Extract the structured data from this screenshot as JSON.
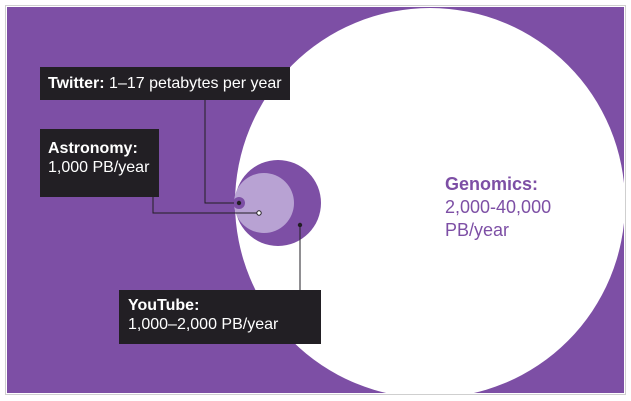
{
  "colors": {
    "background": "#7d4fa5",
    "genomics_circle": "#ffffff",
    "youtube_circle": "#7d4fa5",
    "astronomy_circle": "#b8a2d3",
    "twitter_circle": "#7d4fa5",
    "label_box": "#221f24",
    "genomics_text": "#7d4fa5"
  },
  "labels": {
    "twitter": {
      "name": "Twitter:",
      "value": "1–17 petabytes per year"
    },
    "astronomy": {
      "name": "Astronomy:",
      "value": "1,000 PB/year"
    },
    "youtube": {
      "name": "YouTube:",
      "value": "1,000–2,000 PB/year"
    },
    "genomics": {
      "name": "Genomics:",
      "value_line1": "2,000-40,000",
      "value_line2": "PB/year"
    }
  }
}
